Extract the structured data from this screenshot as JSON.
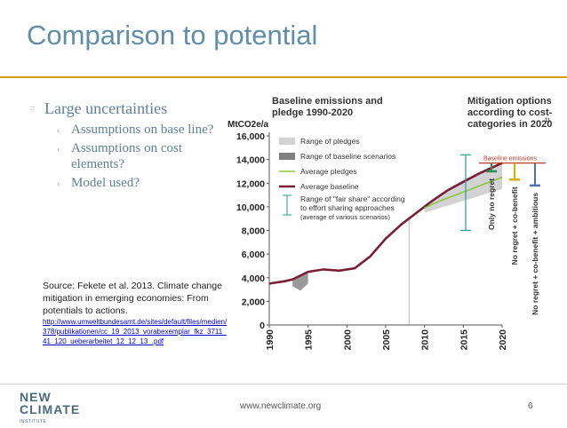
{
  "slide": {
    "title": "Comparison to potential",
    "bullets": {
      "main": "Large uncertainties",
      "sub": [
        "Assumptions on base line?",
        "Assumptions on cost elements?",
        "Model used?"
      ]
    },
    "source_text": "Source: Fekete et al. 2013. Climate change mitigation in emerging economies: From potentials to actions.",
    "source_link": "http://www.umweltbundesamt.de/sites/default/files/medien/378/publikationen/cc_19_2013_vorabexemplar_fkz_3711_41_120_ueberarbeitet_12_12_13_.pdf",
    "footer_url": "www.newclimate.org",
    "page_number": "6",
    "logo_line1": "NEW",
    "logo_line2": "CLIMATE",
    "logo_line3": "INSTITUTE"
  },
  "chart_data": [
    {
      "type": "line",
      "title": "Baseline emissions and pledge 1990-2020",
      "ylabel": "MtCO2e/a",
      "ylim": [
        0,
        16000
      ],
      "yticks": [
        "0",
        "2,000",
        "4,000",
        "6,000",
        "8,000",
        "10,000",
        "12,000",
        "14,000",
        "16,000"
      ],
      "xticks": [
        "1990",
        "1995",
        "2000",
        "2005",
        "2010",
        "2015",
        "2020"
      ],
      "legend": [
        "Range of pledges",
        "Range of baseline scenarios",
        "Average pledges",
        "Average baseline",
        "Range of \"fair share\" according to effort sharing approaches (average of various scenarios)"
      ],
      "series": [
        {
          "name": "Average baseline",
          "color": "#7a1e35",
          "x": [
            1990,
            1992,
            1993,
            1995,
            1997,
            1999,
            2001,
            2003,
            2005,
            2007,
            2009,
            2011,
            2013,
            2015,
            2017,
            2020
          ],
          "values": [
            3500,
            3700,
            3850,
            4500,
            4700,
            4600,
            4800,
            5800,
            7300,
            8500,
            9500,
            10500,
            11400,
            12100,
            12800,
            13700
          ]
        },
        {
          "name": "Average pledges",
          "color": "#8dc63f",
          "x": [
            2010,
            2012,
            2014,
            2016,
            2018,
            2020
          ],
          "values": [
            9900,
            10500,
            11000,
            11500,
            12000,
            12500
          ]
        }
      ],
      "ranges": [
        {
          "name": "Range of baseline scenarios",
          "x": [
            1993,
            1994,
            1995
          ],
          "low": [
            3300,
            2900,
            3500
          ],
          "high": [
            3900,
            4200,
            4500
          ]
        },
        {
          "name": "Range of pledges",
          "x": [
            2010,
            2015,
            2020
          ],
          "low": [
            9500,
            10500,
            11500
          ],
          "high": [
            10200,
            12300,
            13800
          ]
        }
      ],
      "fair_share": {
        "low": 8000,
        "high": 14400
      }
    },
    {
      "type": "bar",
      "title": "Mitigation options according to cost-categories in 2020",
      "title_superscript": "1)",
      "baseline_label": "Baseline emissions",
      "categories": [
        "Only no regret",
        "No regret + co-benefit",
        "No regret + co-benefit + ambitious"
      ],
      "colors": [
        "#2e8b57",
        "#d4b106",
        "#4f6fb0"
      ]
    }
  ]
}
